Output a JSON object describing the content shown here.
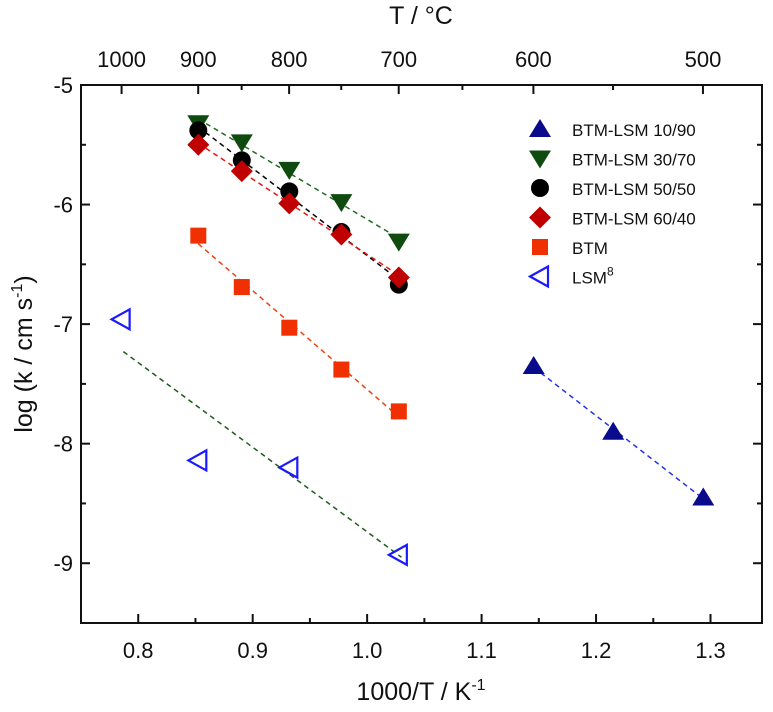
{
  "chart_data": {
    "type": "scatter",
    "xlabel": "1000/T / K",
    "xlabel_sup": "-1",
    "ylabel": "log (k / cm s",
    "ylabel_sup": "-1",
    "ylabel_close": ")",
    "top_xlabel": "T / °C",
    "xlim": [
      0.75,
      1.345
    ],
    "ylim": [
      -9.5,
      -5
    ],
    "xticks": [
      0.8,
      0.9,
      1.0,
      1.1,
      1.2,
      1.3
    ],
    "xtick_labels": [
      "0.8",
      "0.9",
      "1.0",
      "1.1",
      "1.2",
      "1.3"
    ],
    "yticks": [
      -5,
      -6,
      -7,
      -8,
      -9
    ],
    "ytick_labels": [
      "-5",
      "-6",
      "-7",
      "-8",
      "-9"
    ],
    "top_ticks_celsius": [
      1000,
      900,
      800,
      700,
      600,
      500
    ],
    "top_tick_labels": [
      "1000",
      "900",
      "800",
      "700",
      "600",
      "500"
    ],
    "top_minor_ticks_celsius": [
      850,
      750,
      650,
      550
    ],
    "legend_position": "top-right",
    "grid": false,
    "series": [
      {
        "name": "BTM-LSM 10/90",
        "marker": "triangle-up",
        "color": "#0a0a8c",
        "fill": true,
        "line_color": "#2233ee",
        "x": [
          1.1455,
          1.215,
          1.2937
        ],
        "y": [
          -7.35,
          -7.9,
          -8.45
        ]
      },
      {
        "name": "BTM-LSM 30/70",
        "marker": "triangle-down",
        "color": "#0f4a0f",
        "fill": true,
        "line_color": "#1f6a1f",
        "x": [
          0.8525,
          0.8905,
          0.932,
          0.9775,
          1.0277
        ],
        "y": [
          -5.32,
          -5.48,
          -5.71,
          -5.98,
          -6.31
        ]
      },
      {
        "name": "BTM-LSM 50/50",
        "marker": "circle",
        "color": "#000000",
        "fill": true,
        "line_color": "#000000",
        "x": [
          0.8525,
          0.8905,
          0.932,
          0.9775,
          1.0277
        ],
        "y": [
          -5.38,
          -5.63,
          -5.89,
          -6.23,
          -6.67
        ]
      },
      {
        "name": "BTM-LSM 60/40",
        "marker": "diamond",
        "color": "#c00000",
        "fill": true,
        "line_color": "#ee1111",
        "x": [
          0.8525,
          0.8905,
          0.932,
          0.9775,
          1.0277
        ],
        "y": [
          -5.5,
          -5.72,
          -5.99,
          -6.25,
          -6.61
        ]
      },
      {
        "name": "BTM",
        "marker": "square",
        "color": "#f03000",
        "fill": true,
        "line_color": "#f04010",
        "x": [
          0.8525,
          0.8905,
          0.932,
          0.9775,
          1.0277
        ],
        "y": [
          -6.26,
          -6.69,
          -7.03,
          -7.38,
          -7.73
        ]
      },
      {
        "name": "LSM",
        "name_sup": "8",
        "marker": "triangle-left",
        "color": "#1a1aff",
        "fill": false,
        "line_color": "#1f5a1f",
        "x": [
          0.7855,
          0.8525,
          0.932,
          1.0277
        ],
        "y": [
          -6.96,
          -8.14,
          -8.2,
          -8.93
        ],
        "fit_line": {
          "x": [
            0.787,
            1.03
          ],
          "y": [
            -7.23,
            -8.95
          ]
        }
      }
    ]
  }
}
